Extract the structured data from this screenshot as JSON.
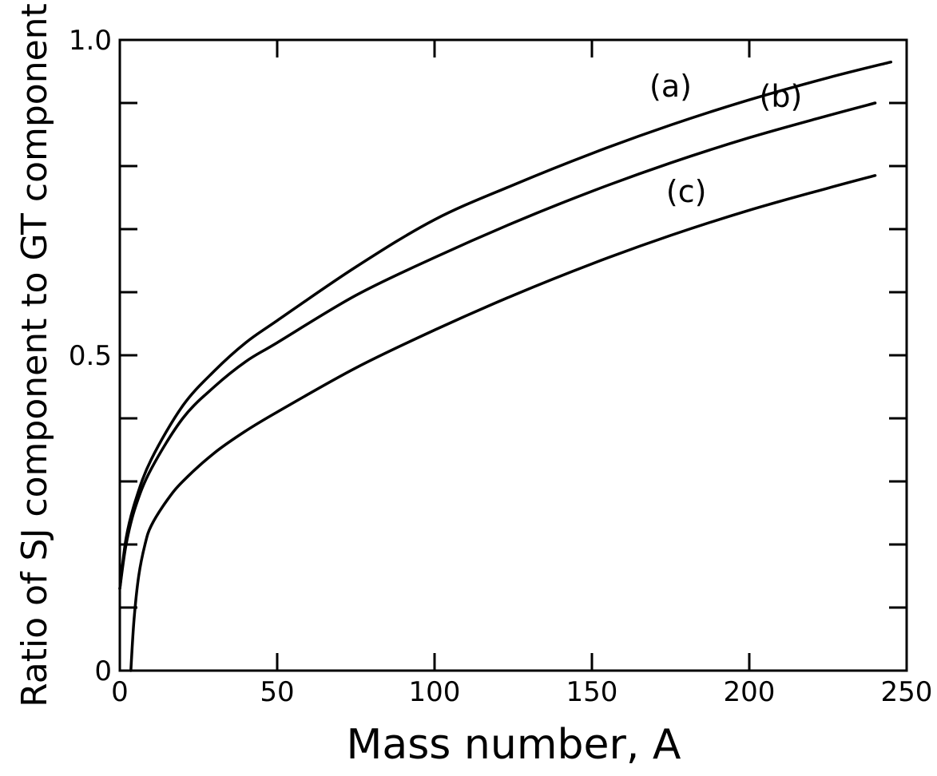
{
  "chart_data": {
    "type": "line",
    "xlabel": "Mass number, A",
    "ylabel": "Ratio of SJ component to GT component",
    "xlim": [
      0,
      250
    ],
    "ylim": [
      0,
      1.0
    ],
    "x_ticks": [
      0,
      50,
      100,
      150,
      200,
      250
    ],
    "x_tick_labels": [
      "0",
      "50",
      "100",
      "150",
      "200",
      "250"
    ],
    "y_ticks": [
      0,
      0.5,
      1.0
    ],
    "y_tick_labels": [
      "0",
      "0.5",
      "1.0"
    ],
    "y_minor_ticks": [
      0.1,
      0.2,
      0.3,
      0.4,
      0.6,
      0.7,
      0.8,
      0.9
    ],
    "grid": false,
    "series": [
      {
        "name": "(a)",
        "x": [
          0,
          2,
          5,
          10,
          20,
          30,
          40,
          50,
          75,
          100,
          125,
          150,
          175,
          200,
          225,
          245
        ],
        "y": [
          0.13,
          0.21,
          0.27,
          0.335,
          0.42,
          0.475,
          0.52,
          0.555,
          0.64,
          0.715,
          0.77,
          0.82,
          0.865,
          0.905,
          0.94,
          0.965
        ]
      },
      {
        "name": "(b)",
        "x": [
          0,
          2,
          5,
          10,
          20,
          30,
          40,
          50,
          75,
          100,
          125,
          150,
          175,
          200,
          225,
          240
        ],
        "y": [
          0.13,
          0.2,
          0.26,
          0.32,
          0.4,
          0.45,
          0.49,
          0.52,
          0.595,
          0.655,
          0.71,
          0.76,
          0.805,
          0.845,
          0.88,
          0.9
        ]
      },
      {
        "name": "(c)",
        "x": [
          3.5,
          4.5,
          6,
          8,
          10,
          15,
          20,
          30,
          40,
          50,
          75,
          100,
          125,
          150,
          175,
          200,
          225,
          240
        ],
        "y": [
          0,
          0.08,
          0.15,
          0.2,
          0.23,
          0.27,
          0.3,
          0.345,
          0.38,
          0.41,
          0.48,
          0.54,
          0.595,
          0.645,
          0.69,
          0.73,
          0.765,
          0.785
        ]
      }
    ]
  }
}
